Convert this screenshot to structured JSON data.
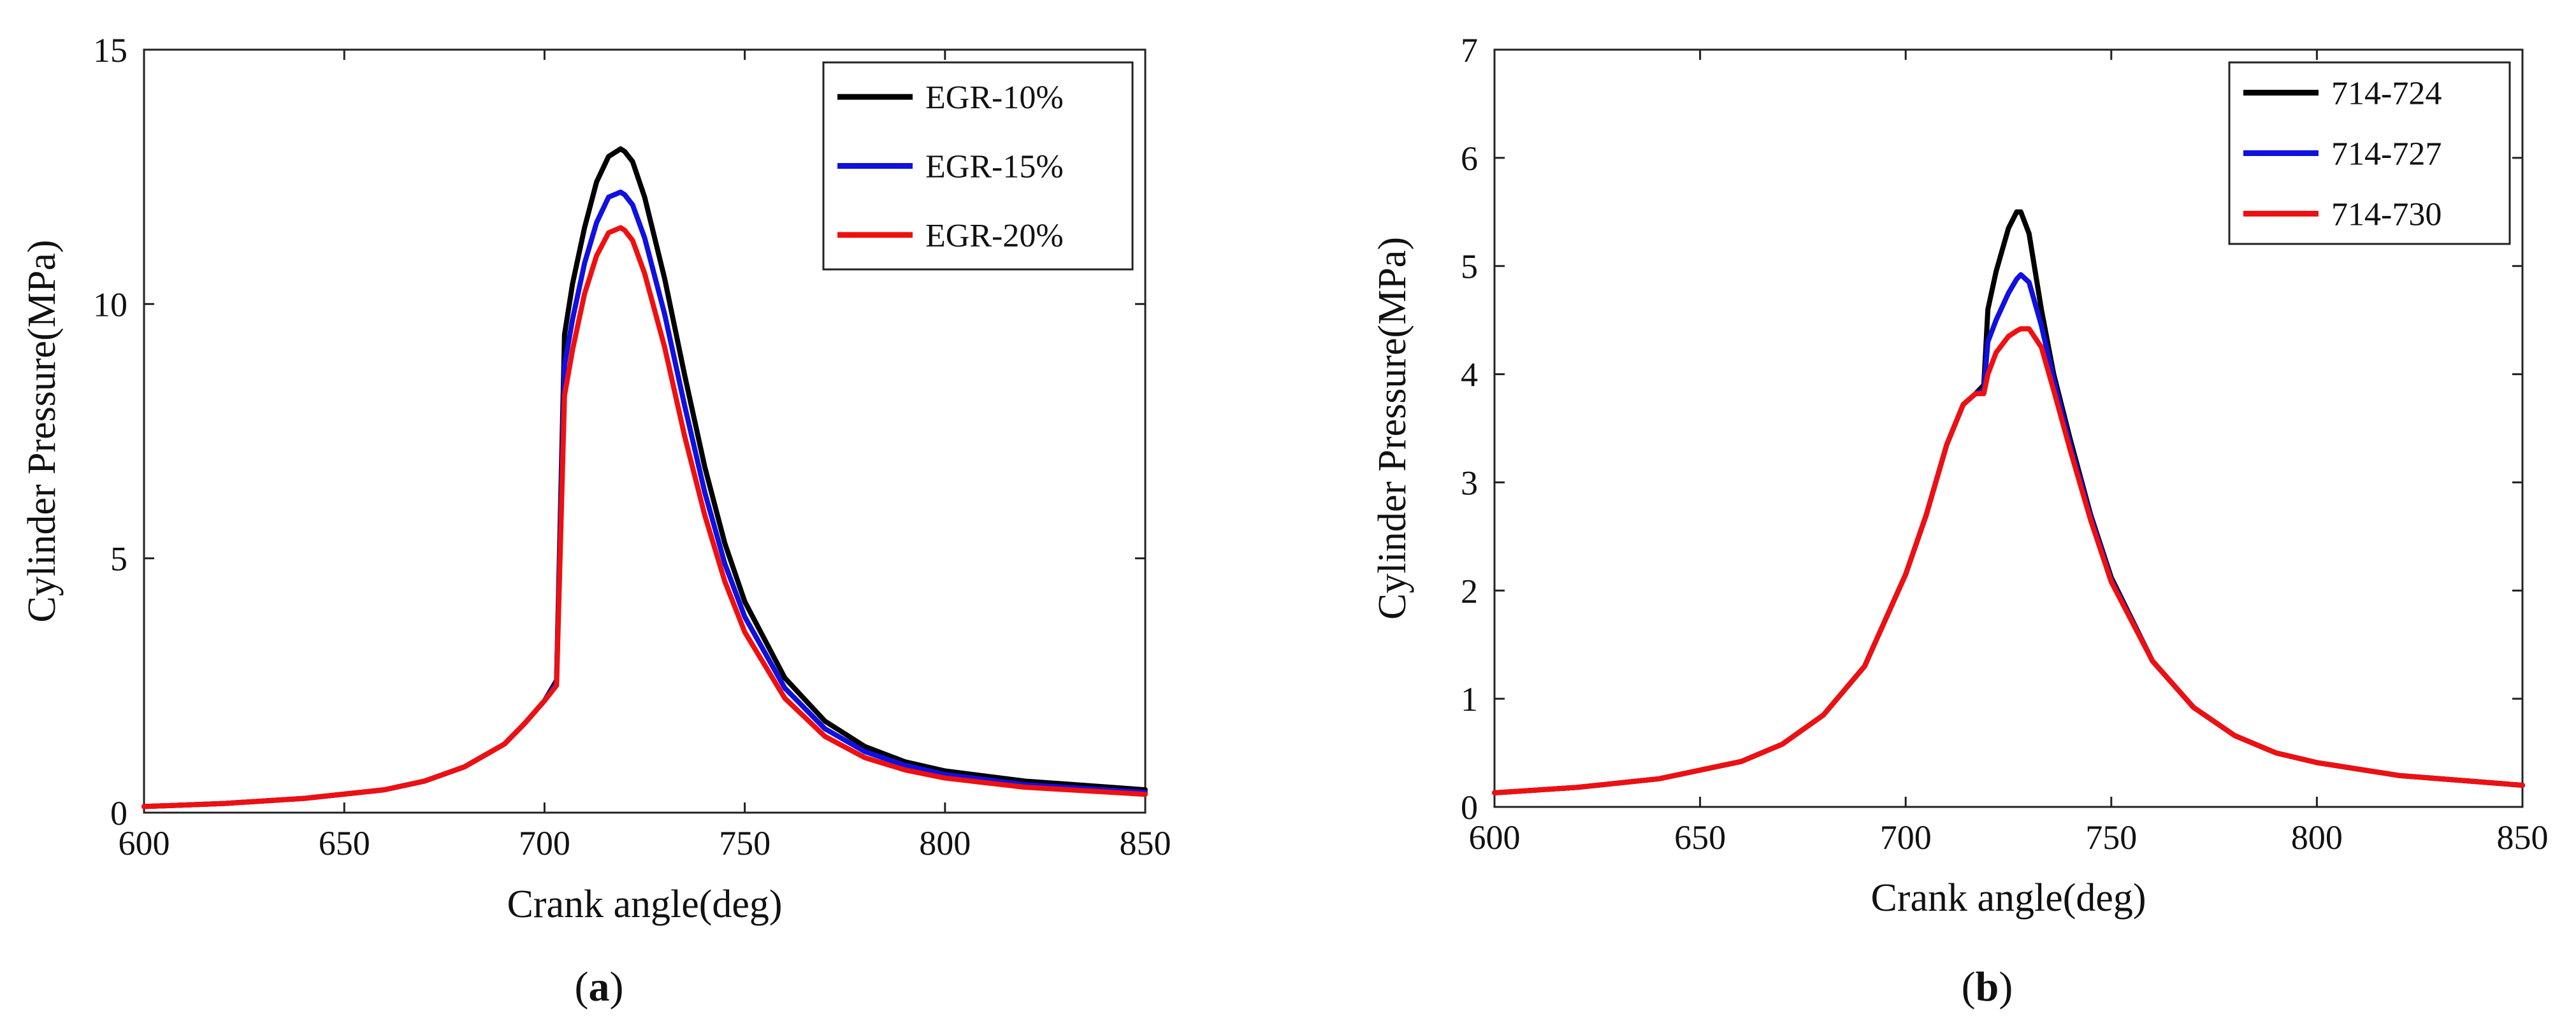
{
  "chart_data": [
    {
      "type": "line",
      "panel_label": "a",
      "xlabel": "Crank angle(deg)",
      "ylabel": "Cylinder Pressure(MPa)",
      "xlim": [
        600,
        850
      ],
      "ylim": [
        0,
        15
      ],
      "xticks": [
        600,
        650,
        700,
        750,
        800,
        850
      ],
      "yticks": [
        0,
        5,
        10,
        15
      ],
      "legend_position": "top-right",
      "series": [
        {
          "name": "EGR-10%",
          "color": "#000000",
          "x": [
            600,
            620,
            640,
            660,
            670,
            680,
            690,
            695,
            700,
            703,
            705,
            707,
            710,
            713,
            716,
            719,
            720,
            722,
            725,
            730,
            735,
            740,
            745,
            750,
            760,
            770,
            780,
            790,
            800,
            820,
            850
          ],
          "y": [
            0.12,
            0.18,
            0.28,
            0.45,
            0.62,
            0.9,
            1.35,
            1.75,
            2.2,
            2.6,
            9.4,
            10.4,
            11.5,
            12.4,
            12.9,
            13.05,
            13.0,
            12.8,
            12.1,
            10.5,
            8.6,
            6.8,
            5.3,
            4.15,
            2.65,
            1.8,
            1.3,
            1.0,
            0.82,
            0.62,
            0.45
          ]
        },
        {
          "name": "EGR-15%",
          "color": "#1010e0",
          "x": [
            600,
            620,
            640,
            660,
            670,
            680,
            690,
            695,
            700,
            703,
            705,
            707,
            710,
            713,
            716,
            719,
            720,
            722,
            725,
            730,
            735,
            740,
            745,
            750,
            760,
            770,
            780,
            790,
            800,
            820,
            850
          ],
          "y": [
            0.12,
            0.18,
            0.28,
            0.45,
            0.62,
            0.9,
            1.35,
            1.75,
            2.2,
            2.55,
            8.8,
            9.7,
            10.8,
            11.6,
            12.1,
            12.2,
            12.15,
            11.95,
            11.3,
            9.8,
            8.0,
            6.3,
            4.9,
            3.85,
            2.45,
            1.65,
            1.2,
            0.93,
            0.75,
            0.55,
            0.4
          ]
        },
        {
          "name": "EGR-20%",
          "color": "#ee1010",
          "x": [
            600,
            620,
            640,
            660,
            670,
            680,
            690,
            695,
            700,
            703,
            705,
            707,
            710,
            713,
            716,
            719,
            720,
            722,
            725,
            730,
            735,
            740,
            745,
            750,
            760,
            770,
            780,
            790,
            800,
            820,
            850
          ],
          "y": [
            0.12,
            0.18,
            0.28,
            0.45,
            0.62,
            0.9,
            1.35,
            1.75,
            2.2,
            2.5,
            8.2,
            9.1,
            10.2,
            10.95,
            11.4,
            11.5,
            11.45,
            11.25,
            10.6,
            9.15,
            7.4,
            5.85,
            4.55,
            3.55,
            2.25,
            1.5,
            1.08,
            0.84,
            0.68,
            0.5,
            0.36
          ]
        }
      ]
    },
    {
      "type": "line",
      "panel_label": "b",
      "xlabel": "Crank angle(deg)",
      "ylabel": "Cylinder Pressure(MPa)",
      "xlim": [
        600,
        850
      ],
      "ylim": [
        0,
        7
      ],
      "xticks": [
        600,
        650,
        700,
        750,
        800,
        850
      ],
      "yticks": [
        0,
        1,
        2,
        3,
        4,
        5,
        6,
        7
      ],
      "legend_position": "top-right",
      "series": [
        {
          "name": "714-724",
          "color": "#000000",
          "x": [
            600,
            620,
            640,
            660,
            670,
            680,
            690,
            700,
            705,
            710,
            714,
            717,
            719,
            720,
            722,
            725,
            727,
            728,
            730,
            733,
            736,
            740,
            745,
            750,
            760,
            770,
            780,
            790,
            800,
            820,
            850
          ],
          "y": [
            0.13,
            0.18,
            0.26,
            0.42,
            0.58,
            0.85,
            1.3,
            2.15,
            2.7,
            3.35,
            3.72,
            3.82,
            3.9,
            4.6,
            4.95,
            5.35,
            5.5,
            5.5,
            5.3,
            4.6,
            4.0,
            3.4,
            2.7,
            2.12,
            1.35,
            0.92,
            0.66,
            0.5,
            0.41,
            0.29,
            0.2
          ]
        },
        {
          "name": "714-727",
          "color": "#1010e0",
          "x": [
            600,
            620,
            640,
            660,
            670,
            680,
            690,
            700,
            705,
            710,
            714,
            717,
            719,
            720,
            722,
            725,
            727,
            728,
            730,
            733,
            736,
            740,
            745,
            750,
            760,
            770,
            780,
            790,
            800,
            820,
            850
          ],
          "y": [
            0.13,
            0.18,
            0.26,
            0.42,
            0.58,
            0.85,
            1.3,
            2.15,
            2.7,
            3.35,
            3.72,
            3.82,
            3.85,
            4.3,
            4.5,
            4.75,
            4.88,
            4.92,
            4.85,
            4.45,
            3.95,
            3.35,
            2.68,
            2.1,
            1.35,
            0.92,
            0.66,
            0.5,
            0.41,
            0.29,
            0.2
          ]
        },
        {
          "name": "714-730",
          "color": "#ee1010",
          "x": [
            600,
            620,
            640,
            660,
            670,
            680,
            690,
            700,
            705,
            710,
            714,
            717,
            719,
            720,
            722,
            725,
            727,
            728,
            730,
            733,
            736,
            740,
            745,
            750,
            760,
            770,
            780,
            790,
            800,
            820,
            850
          ],
          "y": [
            0.13,
            0.18,
            0.26,
            0.42,
            0.58,
            0.85,
            1.3,
            2.15,
            2.7,
            3.35,
            3.72,
            3.82,
            3.82,
            4.0,
            4.2,
            4.35,
            4.4,
            4.42,
            4.42,
            4.25,
            3.85,
            3.3,
            2.65,
            2.08,
            1.35,
            0.92,
            0.66,
            0.5,
            0.41,
            0.29,
            0.2
          ]
        }
      ]
    }
  ]
}
